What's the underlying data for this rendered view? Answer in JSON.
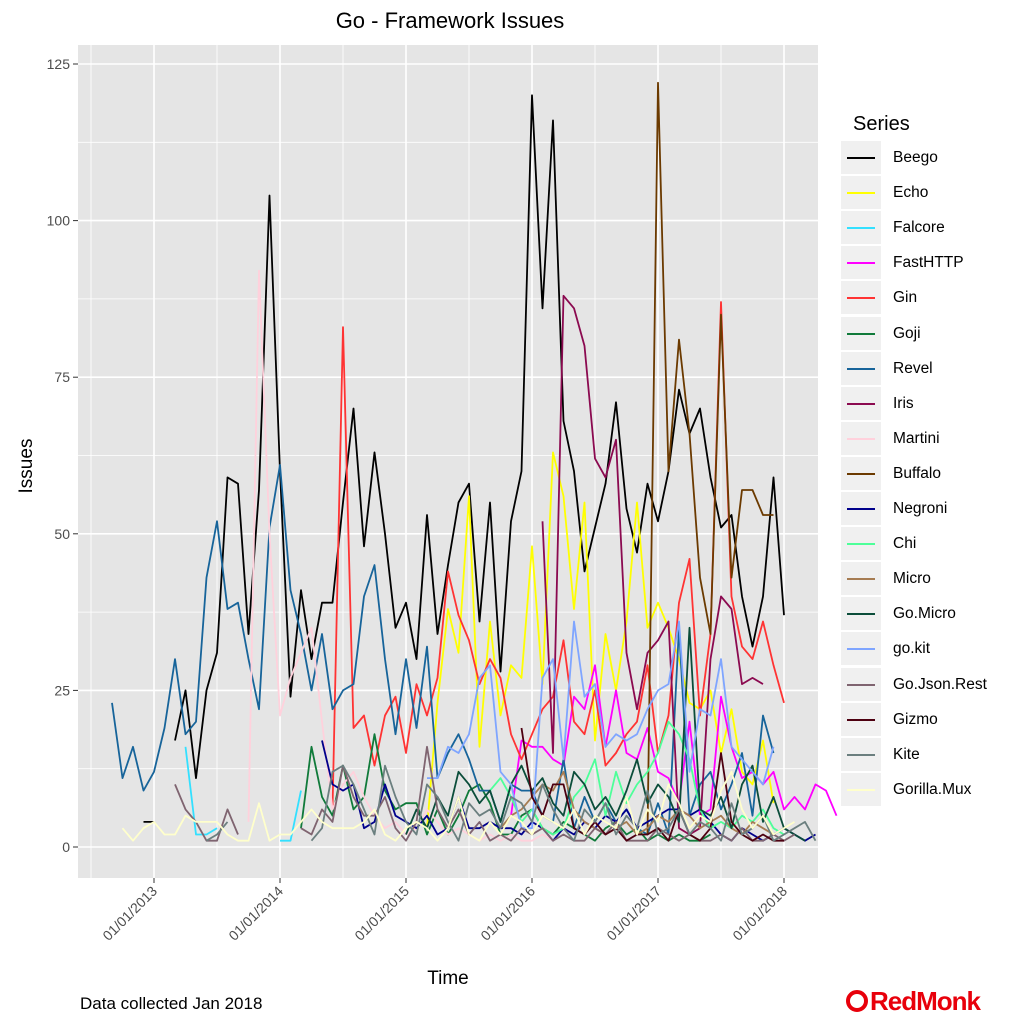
{
  "chart_data": {
    "type": "line",
    "title": "Go - Framework Issues",
    "xlabel": "Time",
    "ylabel": "Issues",
    "ylim": [
      0,
      125
    ],
    "yticks": [
      0,
      25,
      50,
      75,
      100,
      125
    ],
    "xlim": [
      "2012-07",
      "2018-04"
    ],
    "xticks": [
      "01/01/2013",
      "01/01/2014",
      "01/01/2015",
      "01/01/2016",
      "01/01/2017",
      "01/01/2018"
    ],
    "grid": true,
    "legend_title": "Series",
    "legend_position": "right",
    "series": [
      {
        "name": "Beego",
        "color": "#000000",
        "start": "2012-12",
        "values": [
          4,
          4,
          null,
          17,
          25,
          11,
          25,
          31,
          59,
          58,
          34,
          57,
          104,
          60,
          24,
          41,
          30,
          39,
          39,
          55,
          70,
          48,
          63,
          50,
          35,
          39,
          30,
          53,
          34,
          45,
          55,
          58,
          36,
          55,
          28,
          52,
          60,
          120,
          86,
          116,
          68,
          60,
          44,
          51,
          58,
          71,
          54,
          47,
          58,
          52,
          60,
          73,
          66,
          70,
          59,
          51,
          53,
          40,
          32,
          40,
          59,
          37
        ]
      },
      {
        "name": "Echo",
        "color": "#FFFF00",
        "start": "2015-03",
        "values": [
          3,
          23,
          38,
          31,
          56,
          16,
          36,
          21,
          29,
          27,
          48,
          26,
          63,
          56,
          38,
          55,
          17,
          34,
          25,
          36,
          55,
          35,
          39,
          35,
          30,
          23,
          22,
          25,
          15,
          22,
          12,
          10,
          17,
          7
        ]
      },
      {
        "name": "Falcore",
        "color": "#33E0FF",
        "start": "2013-04",
        "values": [
          16,
          2,
          2,
          3,
          null,
          null,
          null,
          null,
          null,
          1,
          1,
          9
        ]
      },
      {
        "name": "FastHTTP",
        "color": "#FF00FF",
        "start": "2015-11",
        "values": [
          5,
          17,
          16,
          16,
          14,
          13,
          24,
          22,
          29,
          16,
          25,
          15,
          14,
          19,
          12,
          11,
          7,
          20,
          5,
          6,
          24,
          16,
          11,
          12,
          10,
          12,
          6,
          8,
          6,
          10,
          9,
          5
        ]
      },
      {
        "name": "Gin",
        "color": "#FF3333",
        "start": "2014-06",
        "values": [
          6,
          83,
          19,
          21,
          13,
          21,
          24,
          15,
          26,
          21,
          27,
          44,
          37,
          33,
          26,
          30,
          27,
          18,
          14,
          18,
          22,
          24,
          33,
          20,
          18,
          25,
          13,
          15,
          18,
          20,
          29,
          15,
          21,
          39,
          46,
          21,
          34,
          87,
          40,
          32,
          30,
          36,
          29,
          23
        ]
      },
      {
        "name": "Goji",
        "color": "#107A3A",
        "start": "2014-03",
        "values": [
          3,
          16,
          8,
          5,
          13,
          6,
          8,
          18,
          9,
          6,
          7,
          7,
          2,
          6,
          2,
          5,
          9,
          10,
          7,
          2,
          2,
          5,
          6,
          3,
          2,
          4,
          3,
          2,
          1,
          3,
          4,
          2,
          3,
          1,
          2,
          1,
          2,
          1,
          1,
          2
        ]
      },
      {
        "name": "Revel",
        "color": "#17649A",
        "start": "2012-09",
        "values": [
          23,
          11,
          16,
          9,
          12,
          19,
          30,
          18,
          20,
          43,
          52,
          38,
          39,
          30,
          22,
          51,
          61,
          41,
          34,
          25,
          34,
          22,
          25,
          26,
          40,
          45,
          30,
          18,
          30,
          19,
          32,
          11,
          15,
          18,
          14,
          9,
          9,
          4,
          10,
          9,
          9,
          5,
          4,
          14,
          3,
          8,
          4,
          7,
          4,
          6,
          3,
          2,
          7,
          2,
          35,
          5,
          10,
          12,
          6,
          10,
          15,
          5,
          21,
          15
        ]
      },
      {
        "name": "Iris",
        "color": "#8B0A50",
        "start": "2016-02",
        "values": [
          52,
          15,
          88,
          86,
          80,
          62,
          59,
          65,
          31,
          22,
          31,
          33,
          36,
          3,
          2,
          3,
          30,
          40,
          38,
          26,
          27,
          26
        ]
      },
      {
        "name": "Martini",
        "color": "#FFD1DC",
        "start": "2013-10",
        "values": [
          4,
          92,
          50,
          21,
          27,
          31,
          35,
          20,
          6,
          10,
          12,
          8,
          5,
          3,
          4,
          2,
          3,
          6,
          4,
          2,
          3,
          2,
          1,
          2,
          1,
          2,
          1,
          1,
          2,
          1
        ]
      },
      {
        "name": "Buffalo",
        "color": "#6B3A00",
        "start": "2016-12",
        "values": [
          2,
          122,
          60,
          81,
          66,
          43,
          34,
          85,
          43,
          57,
          57,
          53,
          53
        ]
      },
      {
        "name": "Negroni",
        "color": "#00008B",
        "start": "2014-05",
        "values": [
          17,
          10,
          9,
          10,
          3,
          4,
          10,
          5,
          4,
          3,
          5,
          2,
          3,
          8,
          3,
          3,
          4,
          3,
          3,
          2,
          4,
          3,
          1,
          3,
          2,
          4,
          3,
          5,
          4,
          6,
          3,
          4,
          5,
          6,
          6,
          5,
          6,
          4,
          2,
          1,
          3,
          2,
          1,
          2,
          3,
          2,
          1,
          2
        ]
      },
      {
        "name": "Chi",
        "color": "#4DFF99",
        "start": "2015-09",
        "values": [
          9,
          11,
          8,
          4,
          6,
          3,
          2,
          3,
          8,
          10,
          14,
          5,
          12,
          7,
          10,
          12,
          15,
          20,
          18,
          14,
          6,
          3,
          4,
          3,
          5,
          4,
          6,
          3,
          2
        ]
      },
      {
        "name": "Micro",
        "color": "#A67C52",
        "start": "2015-10",
        "values": [
          3,
          5,
          6,
          8,
          10,
          9,
          12,
          6,
          4,
          3,
          2,
          3,
          4,
          2,
          3,
          5,
          4,
          6,
          5,
          3,
          4,
          5,
          3,
          2,
          4,
          3,
          2
        ]
      },
      {
        "name": "Go.Micro",
        "color": "#0B4D3A",
        "start": "2015-01",
        "values": [
          2,
          6,
          3,
          8,
          5,
          12,
          10,
          7,
          9,
          4,
          10,
          13,
          9,
          11,
          7,
          5,
          12,
          10,
          6,
          8,
          5,
          9,
          14,
          7,
          10,
          8,
          4,
          35,
          6,
          5,
          8,
          3,
          10,
          13,
          4,
          8,
          3,
          2,
          1
        ]
      },
      {
        "name": "go.kit",
        "color": "#7FA5FF",
        "start": "2015-03",
        "values": [
          11,
          11,
          16,
          15,
          18,
          27,
          29,
          12,
          10,
          3,
          3,
          27,
          30,
          14,
          36,
          24,
          26,
          16,
          18,
          17,
          18,
          22,
          25,
          26,
          36,
          12,
          22,
          21,
          30,
          16,
          14,
          12,
          10,
          16
        ]
      },
      {
        "name": "Go.Json.Rest",
        "color": "#7F6470",
        "start": "2013-03",
        "values": [
          10,
          6,
          4,
          1,
          1,
          6,
          2,
          null,
          null,
          null,
          null,
          null,
          3,
          2,
          6,
          4,
          13,
          8,
          5,
          5,
          8,
          3,
          1,
          4,
          16,
          6,
          3,
          6,
          2,
          4,
          1,
          2,
          1,
          3,
          2,
          3,
          1,
          2,
          1,
          1,
          3,
          2,
          4,
          1,
          1,
          1,
          3,
          2,
          1,
          2,
          1,
          1,
          2,
          1,
          3,
          1,
          1,
          2,
          1,
          2
        ]
      },
      {
        "name": "Gizmo",
        "color": "#4D0010",
        "start": "2015-12",
        "values": [
          19,
          8,
          5,
          10,
          10,
          3,
          2,
          4,
          2,
          3,
          1,
          2,
          2,
          3,
          1,
          6,
          2,
          1,
          3,
          15,
          4,
          2,
          1,
          2,
          1,
          1
        ]
      },
      {
        "name": "Kite",
        "color": "#6B7F7F",
        "start": "2013-06",
        "values": [
          1,
          2,
          4,
          null,
          null,
          null,
          null,
          null,
          null,
          null,
          1,
          3,
          12,
          13,
          10,
          6,
          2,
          13,
          8,
          4,
          2,
          10,
          8,
          4,
          1,
          7,
          5,
          6,
          3,
          8,
          7,
          4,
          10,
          6,
          3,
          1,
          6,
          4,
          7,
          2,
          5,
          3,
          9,
          2,
          3,
          6,
          2,
          4,
          3,
          1,
          7,
          2,
          3,
          5,
          1,
          2,
          3,
          4,
          1
        ]
      },
      {
        "name": "Gorilla.Mux",
        "color": "#FFFFCC",
        "start": "2012-10",
        "values": [
          3,
          1,
          3,
          4,
          2,
          2,
          5,
          4,
          4,
          4,
          2,
          1,
          1,
          7,
          1,
          2,
          2,
          4,
          6,
          4,
          3,
          3,
          3,
          4,
          6,
          2,
          1,
          3,
          4,
          3,
          1,
          3,
          8,
          2,
          1,
          4,
          2,
          5,
          4,
          2,
          5,
          4,
          3,
          6,
          2,
          5,
          4,
          3,
          8,
          2,
          6,
          4,
          10,
          7,
          3,
          5,
          4,
          9,
          12,
          6,
          3,
          5,
          2,
          3,
          4
        ]
      }
    ],
    "footnote": "Data collected Jan 2018",
    "logo_text": "RedMonk"
  }
}
